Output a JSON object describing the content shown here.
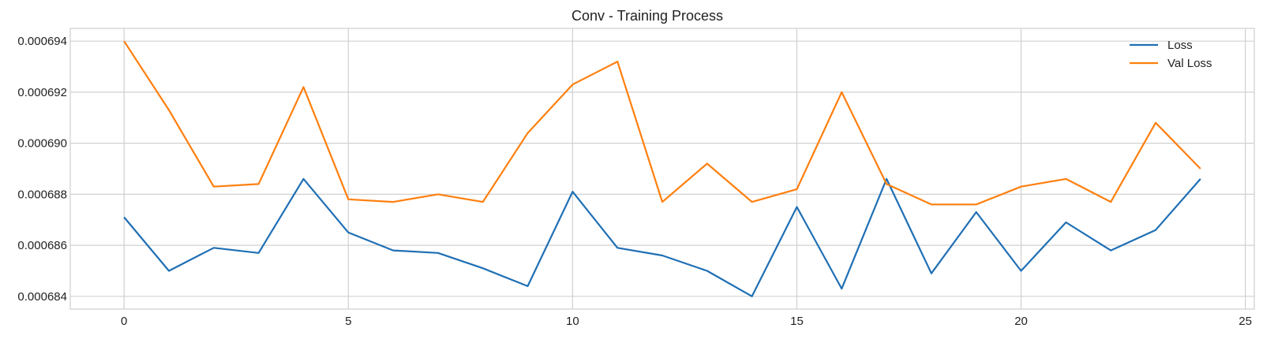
{
  "chart_data": {
    "type": "line",
    "title": "Conv - Training Process",
    "xlabel": "",
    "ylabel": "",
    "xlim": [
      -1.2,
      25.2
    ],
    "ylim": [
      0.0006835,
      0.0006945
    ],
    "grid": true,
    "legend_position": "top-right",
    "x_ticks": [
      0,
      5,
      10,
      15,
      20,
      25
    ],
    "y_ticks": [
      0.000684,
      0.000686,
      0.000688,
      0.00069,
      0.000692,
      0.000694
    ],
    "y_tick_labels": [
      "0.000684",
      "0.000686",
      "0.000688",
      "0.000690",
      "0.000692",
      "0.000694"
    ],
    "x": [
      0,
      1,
      2,
      3,
      4,
      5,
      6,
      7,
      8,
      9,
      10,
      11,
      12,
      13,
      14,
      15,
      16,
      17,
      18,
      19,
      20,
      21,
      22,
      23,
      24
    ],
    "series": [
      {
        "name": "Loss",
        "color": "#1f6fb4",
        "values": [
          0.0006871,
          0.000685,
          0.0006859,
          0.0006857,
          0.0006886,
          0.0006865,
          0.0006858,
          0.0006857,
          0.0006851,
          0.0006844,
          0.0006881,
          0.0006859,
          0.0006856,
          0.000685,
          0.000684,
          0.0006875,
          0.0006843,
          0.0006886,
          0.0006849,
          0.0006873,
          0.000685,
          0.0006869,
          0.0006858,
          0.0006866,
          0.0006886
        ]
      },
      {
        "name": "Val Loss",
        "color": "#ff7f0e",
        "values": [
          0.000694,
          0.0006913,
          0.0006883,
          0.0006884,
          0.0006922,
          0.0006878,
          0.0006877,
          0.000688,
          0.0006877,
          0.0006904,
          0.0006923,
          0.0006932,
          0.0006877,
          0.0006892,
          0.0006877,
          0.0006882,
          0.000692,
          0.0006884,
          0.0006876,
          0.0006876,
          0.0006883,
          0.0006886,
          0.0006877,
          0.0006908,
          0.000689
        ]
      }
    ]
  }
}
